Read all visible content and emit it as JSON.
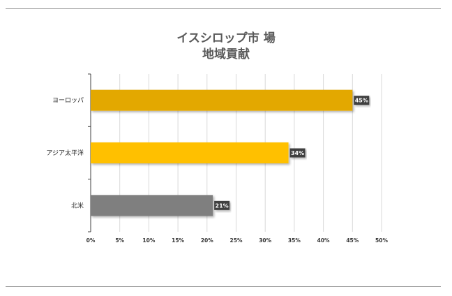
{
  "title_line1": "イスシロップ市 場",
  "title_line2": "地域貢献",
  "chart_data": {
    "type": "bar",
    "orientation": "horizontal",
    "title": "イスシロップ市 場 地域貢献",
    "categories": [
      "ヨーロッパ",
      "アジア太平洋",
      "北米"
    ],
    "values": [
      45,
      34,
      21
    ],
    "data_labels": [
      "45%",
      "34%",
      "21%"
    ],
    "bar_colors": [
      "#e3a800",
      "#ffc000",
      "#7f7f7f"
    ],
    "xlim": [
      0,
      50
    ],
    "x_ticks": [
      0,
      5,
      10,
      15,
      20,
      25,
      30,
      35,
      40,
      45,
      50
    ],
    "x_tick_labels": [
      "0%",
      "5%",
      "10%",
      "15%",
      "20%",
      "25%",
      "30%",
      "35%",
      "40%",
      "45%",
      "50%"
    ],
    "grid": true,
    "legend": "none"
  }
}
